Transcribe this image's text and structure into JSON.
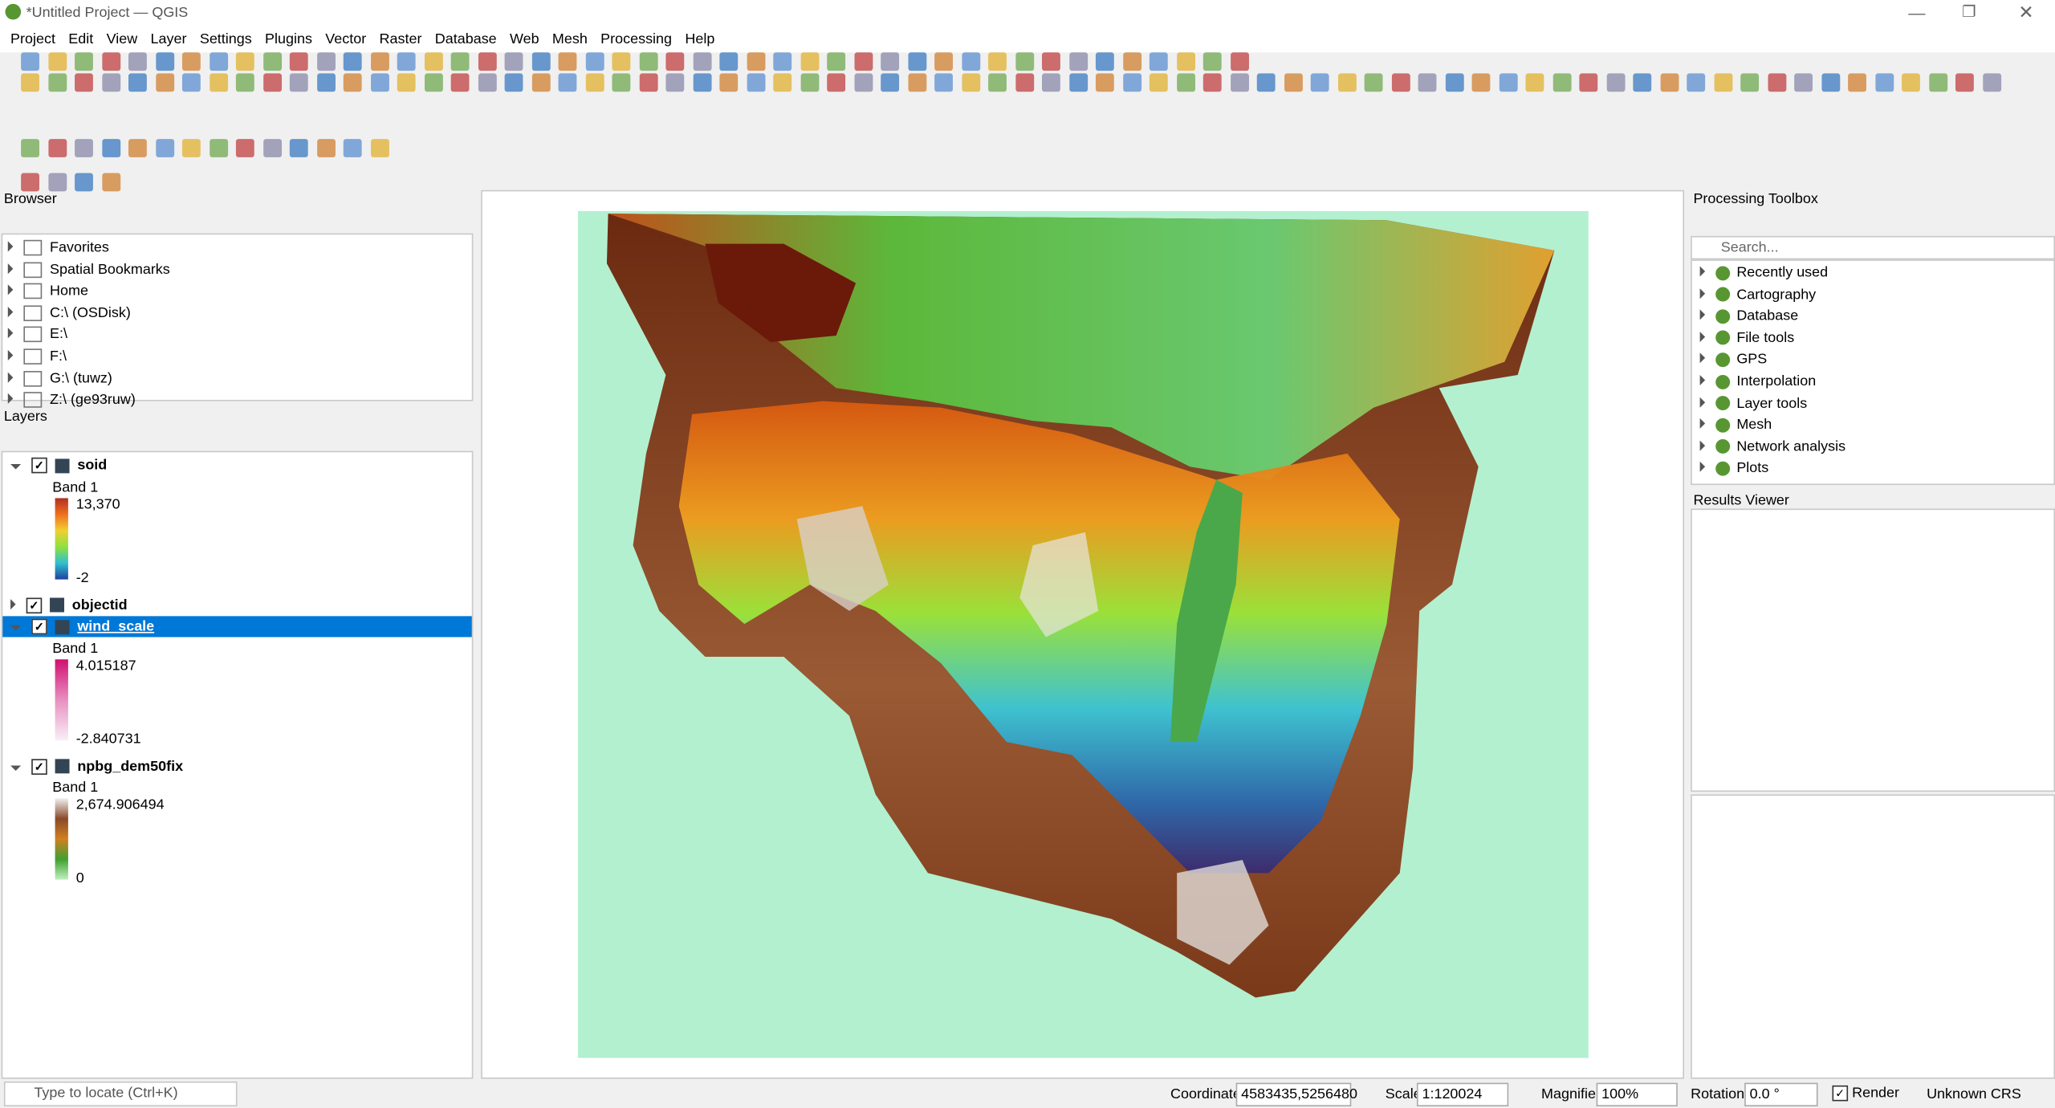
{
  "window": {
    "title": "*Untitled Project — QGIS"
  },
  "menu": [
    "Project",
    "Edit",
    "View",
    "Layer",
    "Settings",
    "Plugins",
    "Vector",
    "Raster",
    "Database",
    "Web",
    "Mesh",
    "Processing",
    "Help"
  ],
  "browser": {
    "title": "Browser",
    "items": [
      "Favorites",
      "Spatial Bookmarks",
      "Home",
      "C:\\ (OSDisk)",
      "E:\\",
      "F:\\",
      "G:\\ (tuwz)",
      "Z:\\ (ge93ruw)"
    ]
  },
  "layers": {
    "title": "Layers",
    "items": [
      {
        "name": "soid",
        "band": "Band 1",
        "max": "13,370",
        "min": "-2"
      },
      {
        "name": "objectid"
      },
      {
        "name": "wind_scale",
        "band": "Band 1",
        "max": "4.015187",
        "min": "-2.840731"
      },
      {
        "name": "npbg_dem50fix",
        "band": "Band 1",
        "max": "2,674.906494",
        "min": "0"
      }
    ]
  },
  "processing": {
    "title": "Processing Toolbox",
    "search": "Search...",
    "items": [
      "Recently used",
      "Cartography",
      "Database",
      "File tools",
      "GPS",
      "Interpolation",
      "Layer tools",
      "Mesh",
      "Network analysis",
      "Plots"
    ]
  },
  "results": {
    "title": "Results Viewer"
  },
  "status": {
    "locate": "Type to locate (Ctrl+K)",
    "coordinate_label": "Coordinate",
    "coordinate": "4583435,5256480",
    "scale_label": "Scale",
    "scale": "1:120024",
    "magnifier_label": "Magnifier",
    "magnifier": "100%",
    "rotation_label": "Rotation",
    "rotation": "0.0 °",
    "render": "Render",
    "crs": "Unknown CRS"
  }
}
